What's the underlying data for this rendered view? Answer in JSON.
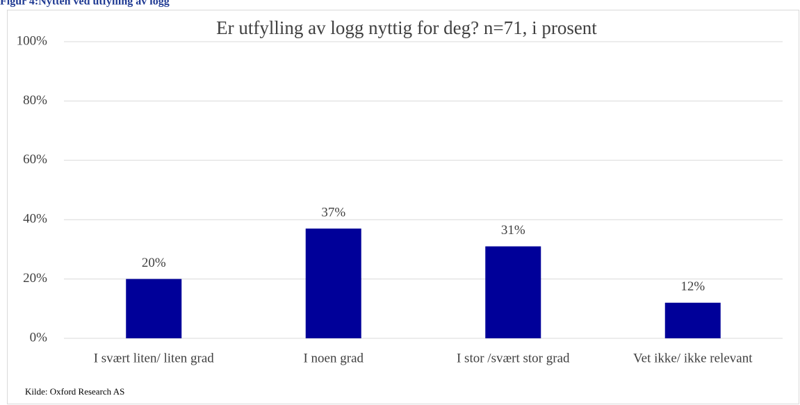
{
  "header": "Figur 4:Nytten ved utfylling av logg",
  "chart_data": {
    "type": "bar",
    "title": "Er utfylling av logg nyttig for deg? n=71, i prosent",
    "categories": [
      "I svært liten/ liten grad",
      "I noen grad",
      "I stor /svært stor grad",
      "Vet ikke/ ikke relevant"
    ],
    "values": [
      20,
      37,
      31,
      12
    ],
    "value_labels": [
      "20%",
      "37%",
      "31%",
      "12%"
    ],
    "color": "#000099",
    "ylim": [
      0,
      100
    ],
    "yticks": [
      {
        "value": 0,
        "label": "0%"
      },
      {
        "value": 20,
        "label": "20%"
      },
      {
        "value": 40,
        "label": "40%"
      },
      {
        "value": 60,
        "label": "60%"
      },
      {
        "value": 80,
        "label": "80%"
      },
      {
        "value": 100,
        "label": "100%"
      }
    ],
    "grid": true
  },
  "source": "Kilde: Oxford Research AS"
}
